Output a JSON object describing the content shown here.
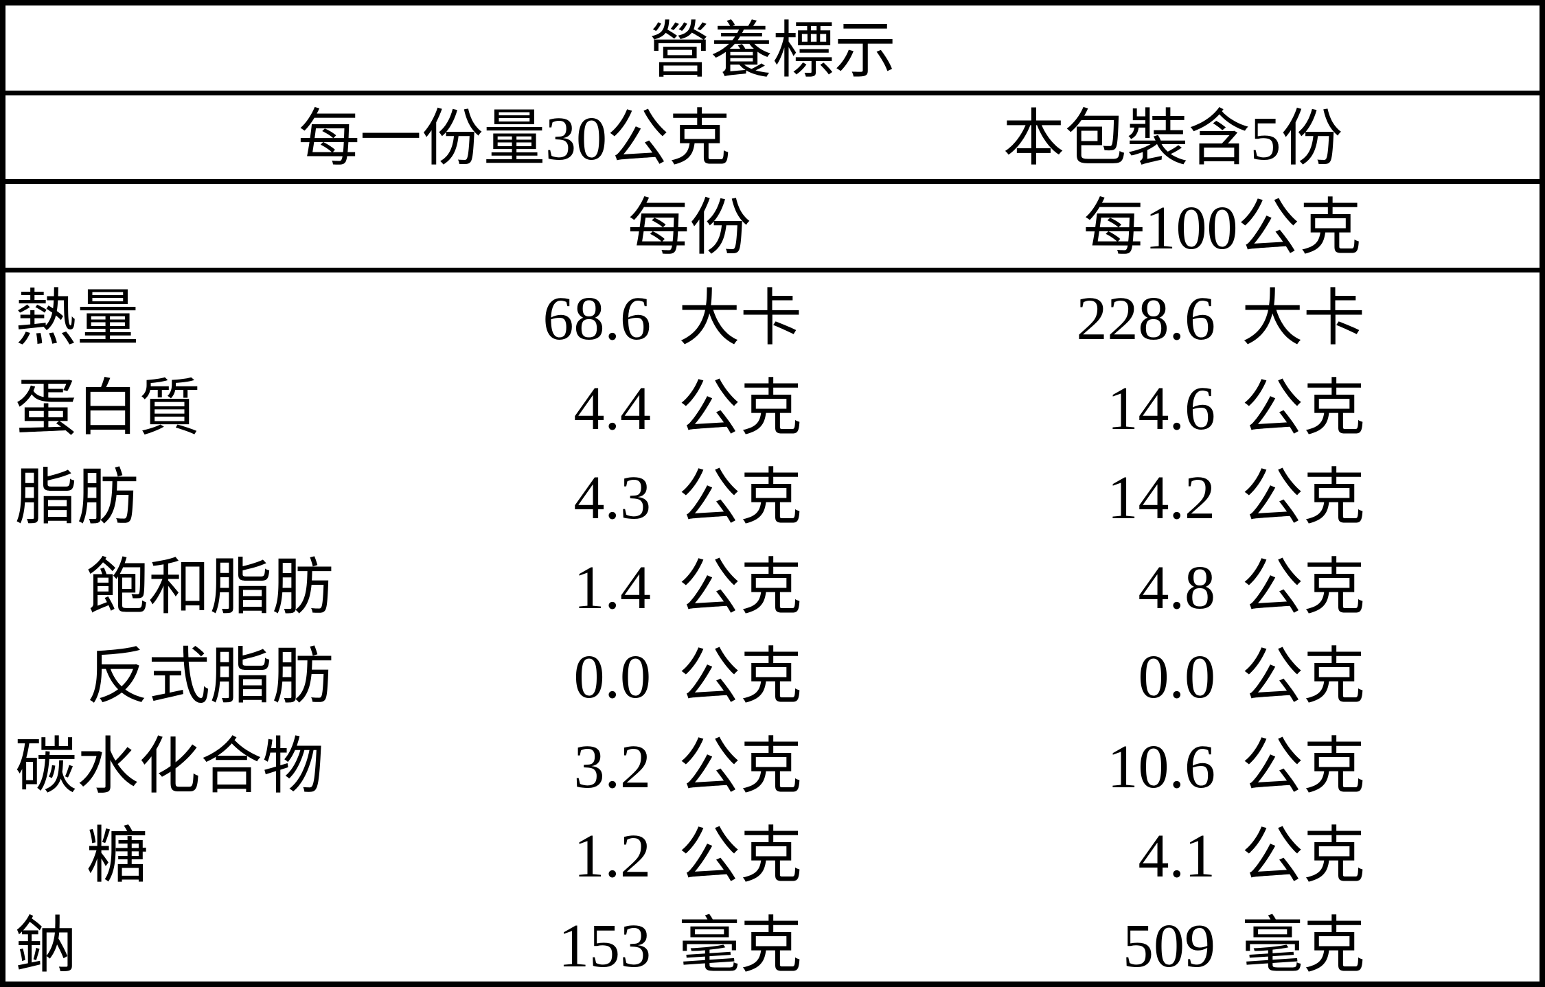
{
  "title": "營養標示",
  "serving": {
    "size": "每一份量30公克",
    "count": "本包裝含5份"
  },
  "columns": {
    "per_serving": "每份",
    "per_100g": "每100公克"
  },
  "rows": [
    {
      "name": "熱量",
      "indent": false,
      "per_serving": "68.6",
      "per_serving_unit": "大卡",
      "per_100g": "228.6",
      "per_100g_unit": "大卡"
    },
    {
      "name": "蛋白質",
      "indent": false,
      "per_serving": "4.4",
      "per_serving_unit": "公克",
      "per_100g": "14.6",
      "per_100g_unit": "公克"
    },
    {
      "name": "脂肪",
      "indent": false,
      "per_serving": "4.3",
      "per_serving_unit": "公克",
      "per_100g": "14.2",
      "per_100g_unit": "公克"
    },
    {
      "name": "飽和脂肪",
      "indent": true,
      "per_serving": "1.4",
      "per_serving_unit": "公克",
      "per_100g": "4.8",
      "per_100g_unit": "公克"
    },
    {
      "name": "反式脂肪",
      "indent": true,
      "per_serving": "0.0",
      "per_serving_unit": "公克",
      "per_100g": "0.0",
      "per_100g_unit": "公克"
    },
    {
      "name": "碳水化合物",
      "indent": false,
      "per_serving": "3.2",
      "per_serving_unit": "公克",
      "per_100g": "10.6",
      "per_100g_unit": "公克"
    },
    {
      "name": "糖",
      "indent": true,
      "per_serving": "1.2",
      "per_serving_unit": "公克",
      "per_100g": "4.1",
      "per_100g_unit": "公克"
    },
    {
      "name": "鈉",
      "indent": false,
      "per_serving": "153",
      "per_serving_unit": "毫克",
      "per_100g": "509",
      "per_100g_unit": "毫克"
    }
  ]
}
